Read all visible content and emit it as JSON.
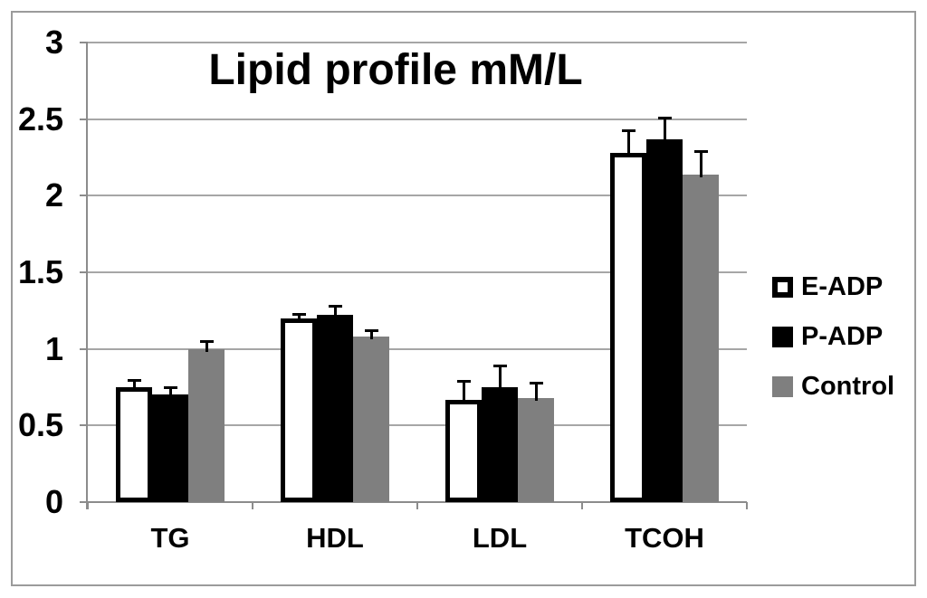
{
  "chart_data": {
    "type": "bar",
    "title": "Lipid profile mM/L",
    "categories": [
      "TG",
      "HDL",
      "LDL",
      "TCOH"
    ],
    "series": [
      {
        "name": "E-ADP",
        "fill": "#ffffff",
        "border": "#000000",
        "values": [
          0.75,
          1.2,
          0.67,
          2.28
        ],
        "errors": [
          0.05,
          0.03,
          0.12,
          0.15
        ]
      },
      {
        "name": "P-ADP",
        "fill": "#000000",
        "border": "#000000",
        "values": [
          0.7,
          1.22,
          0.75,
          2.37
        ],
        "errors": [
          0.05,
          0.06,
          0.14,
          0.14
        ]
      },
      {
        "name": "Control",
        "fill": "#7f7f7f",
        "border": "#7f7f7f",
        "values": [
          1.0,
          1.08,
          0.68,
          2.14
        ],
        "errors": [
          0.05,
          0.04,
          0.1,
          0.15
        ]
      }
    ],
    "y_axis": {
      "min": 0,
      "max": 3,
      "step": 0.5,
      "tick_labels": [
        "0",
        "0.5",
        "1",
        "1.5",
        "2",
        "2.5",
        "3"
      ]
    },
    "x_axis": {
      "label": ""
    },
    "legend": {
      "position": "right",
      "entries": [
        "E-ADP",
        "P-ADP",
        "Control"
      ]
    },
    "grid": true,
    "ylim": [
      0,
      3
    ],
    "colors": {
      "gridline": "#a6a6a6",
      "axis": "#8c8c8c",
      "figure_border": "#9b9b9b",
      "error_bar": "#000000",
      "text": "#000000",
      "background": "#ffffff"
    }
  }
}
